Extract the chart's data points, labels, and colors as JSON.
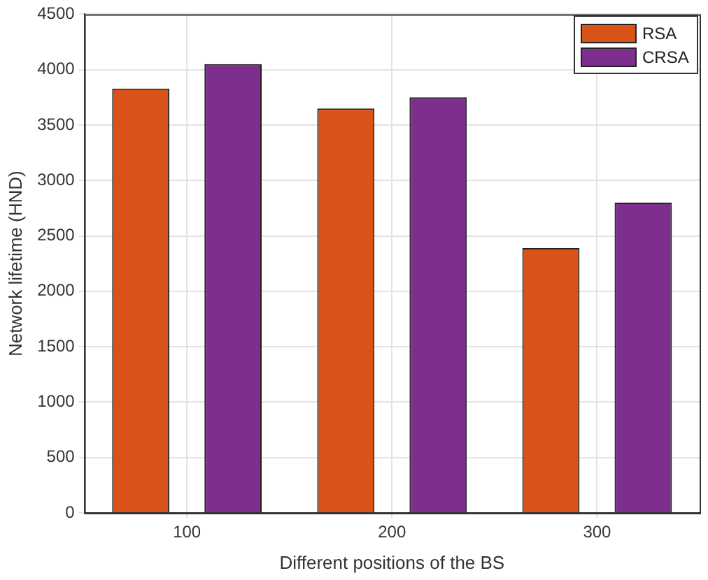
{
  "chart_data": {
    "type": "bar",
    "xlabel": "Different positions of the BS",
    "ylabel": "Network lifetime (HND)",
    "categories": [
      "100",
      "200",
      "300"
    ],
    "series": [
      {
        "name": "RSA",
        "color": "#d95319",
        "values": [
          3830,
          3650,
          2390
        ]
      },
      {
        "name": "CRSA",
        "color": "#7e2f8e",
        "values": [
          4050,
          3750,
          2800
        ]
      }
    ],
    "ylim": [
      0,
      4500
    ],
    "yticks": [
      0,
      500,
      1000,
      1500,
      2000,
      2500,
      3000,
      3500,
      4000,
      4500
    ],
    "grid": true,
    "legend": "top right"
  }
}
